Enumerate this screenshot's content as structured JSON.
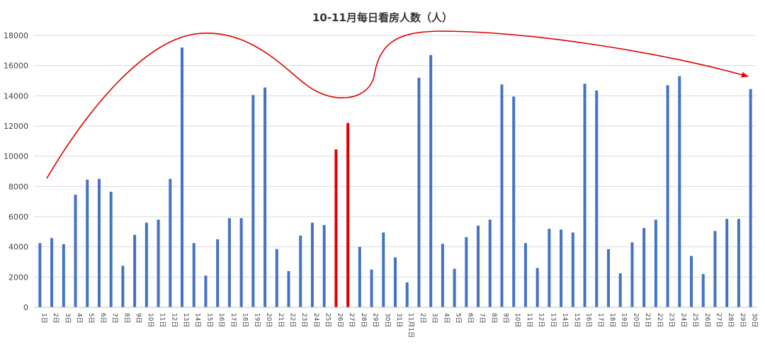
{
  "chart_data": {
    "type": "bar",
    "title": "10-11月每日看房人数（人）",
    "ylim": [
      0,
      18000
    ],
    "yticks": [
      0,
      2000,
      4000,
      6000,
      8000,
      10000,
      12000,
      14000,
      16000,
      18000
    ],
    "grid": true,
    "legend": "none",
    "categories": [
      "1日",
      "2日",
      "3日",
      "4日",
      "5日",
      "6日",
      "7日",
      "8日",
      "9日",
      "10日",
      "11日",
      "12日",
      "13日",
      "14日",
      "15日",
      "16日",
      "17日",
      "18日",
      "19日",
      "20日",
      "21日",
      "22日",
      "23日",
      "24日",
      "25日",
      "26日",
      "27日",
      "28日",
      "29日",
      "30日",
      "31日",
      "11月1日",
      "2日",
      "3日",
      "4日",
      "5日",
      "6日",
      "7日",
      "8日",
      "9日",
      "10日",
      "11日",
      "12日",
      "13日",
      "14日",
      "15日",
      "16日",
      "17日",
      "18日",
      "19日",
      "20日",
      "21日",
      "22日",
      "23日",
      "24日",
      "25日",
      "26日",
      "27日",
      "28日",
      "29日",
      "30日"
    ],
    "values": [
      4250,
      4580,
      4180,
      7450,
      8450,
      8500,
      7650,
      2750,
      4800,
      5600,
      5800,
      8500,
      17200,
      4250,
      2100,
      4500,
      5900,
      5900,
      14050,
      14550,
      3850,
      2400,
      4750,
      5600,
      5450,
      10450,
      12200,
      4000,
      2500,
      4950,
      3300,
      1650,
      15200,
      16700,
      4200,
      2550,
      4650,
      5400,
      5800,
      14750,
      13950,
      4250,
      2600,
      5200,
      5150,
      4950,
      14800,
      14350,
      3850,
      2250,
      4300,
      5250,
      5800,
      14700,
      15300,
      3400,
      2200,
      5050,
      5850,
      5850,
      14450
    ],
    "highlight_indices": [
      25,
      26
    ],
    "colors": {
      "bar": "#4472c4",
      "highlight": "#e00000",
      "trend_arrow": "#e00000"
    }
  }
}
